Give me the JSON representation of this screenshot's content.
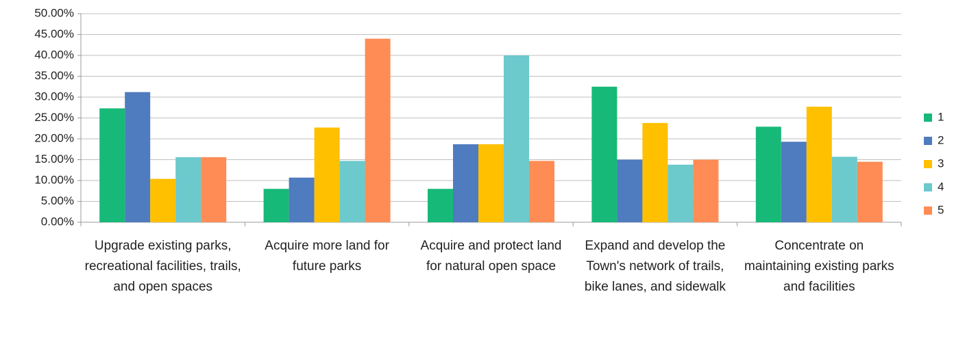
{
  "chart_data": {
    "type": "bar",
    "categories": [
      "Upgrade existing parks, recreational facilities, trails, and open spaces",
      "Acquire more land for future parks",
      "Acquire and protect land for natural open space",
      "Expand and develop the Town's network of trails, bike lanes, and sidewalk",
      "Concentrate on maintaining existing parks and facilities"
    ],
    "series": [
      {
        "name": "1",
        "color": "#17b978",
        "values": [
          27.3,
          8.0,
          8.0,
          32.5,
          22.9
        ]
      },
      {
        "name": "2",
        "color": "#4f7bbf",
        "values": [
          31.2,
          10.7,
          18.7,
          15.0,
          19.3
        ]
      },
      {
        "name": "3",
        "color": "#ffc000",
        "values": [
          10.4,
          22.7,
          18.7,
          23.8,
          27.7
        ]
      },
      {
        "name": "4",
        "color": "#6cc9cc",
        "values": [
          15.6,
          14.7,
          40.0,
          13.8,
          15.7
        ]
      },
      {
        "name": "5",
        "color": "#ff8c55",
        "values": [
          15.6,
          44.0,
          14.7,
          15.0,
          14.5
        ]
      }
    ],
    "ylim": [
      0,
      50
    ],
    "yticks": [
      {
        "value": 0,
        "label": "0.00%"
      },
      {
        "value": 5,
        "label": "5.00%"
      },
      {
        "value": 10,
        "label": "10.00%"
      },
      {
        "value": 15,
        "label": "15.00%"
      },
      {
        "value": 20,
        "label": "20.00%"
      },
      {
        "value": 25,
        "label": "25.00%"
      },
      {
        "value": 30,
        "label": "30.00%"
      },
      {
        "value": 35,
        "label": "35.00%"
      },
      {
        "value": 40,
        "label": "40.00%"
      },
      {
        "value": 45,
        "label": "45.00%"
      },
      {
        "value": 50,
        "label": "50.00%"
      }
    ],
    "grid": true,
    "legend": "right"
  }
}
